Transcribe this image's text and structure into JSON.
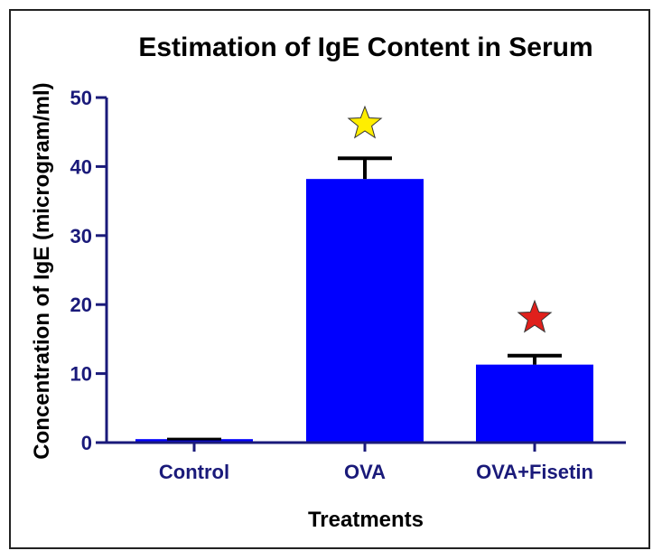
{
  "chart_data": {
    "type": "bar",
    "title": "Estimation of IgE Content in Serum",
    "xlabel": "Treatments",
    "ylabel": "Concentration of IgE (microgram/ml)",
    "categories": [
      "Control",
      "OVA",
      "OVA+Fisetin"
    ],
    "values": [
      0.5,
      38.2,
      11.3
    ],
    "error_upper": [
      0.5,
      41.2,
      12.6
    ],
    "significance_stars": [
      null,
      "yellow",
      "red"
    ],
    "ylim": [
      0,
      50
    ],
    "yticks": [
      0,
      10,
      20,
      30,
      40,
      50
    ],
    "grid": false,
    "legend": "none"
  },
  "colors": {
    "bar": "#0000ff",
    "axis": "#1a1a7a",
    "tick_label": "#1a1a7a",
    "star_yellow": "#ffee00",
    "star_red": "#e0201c",
    "error_bar": "#000000"
  }
}
